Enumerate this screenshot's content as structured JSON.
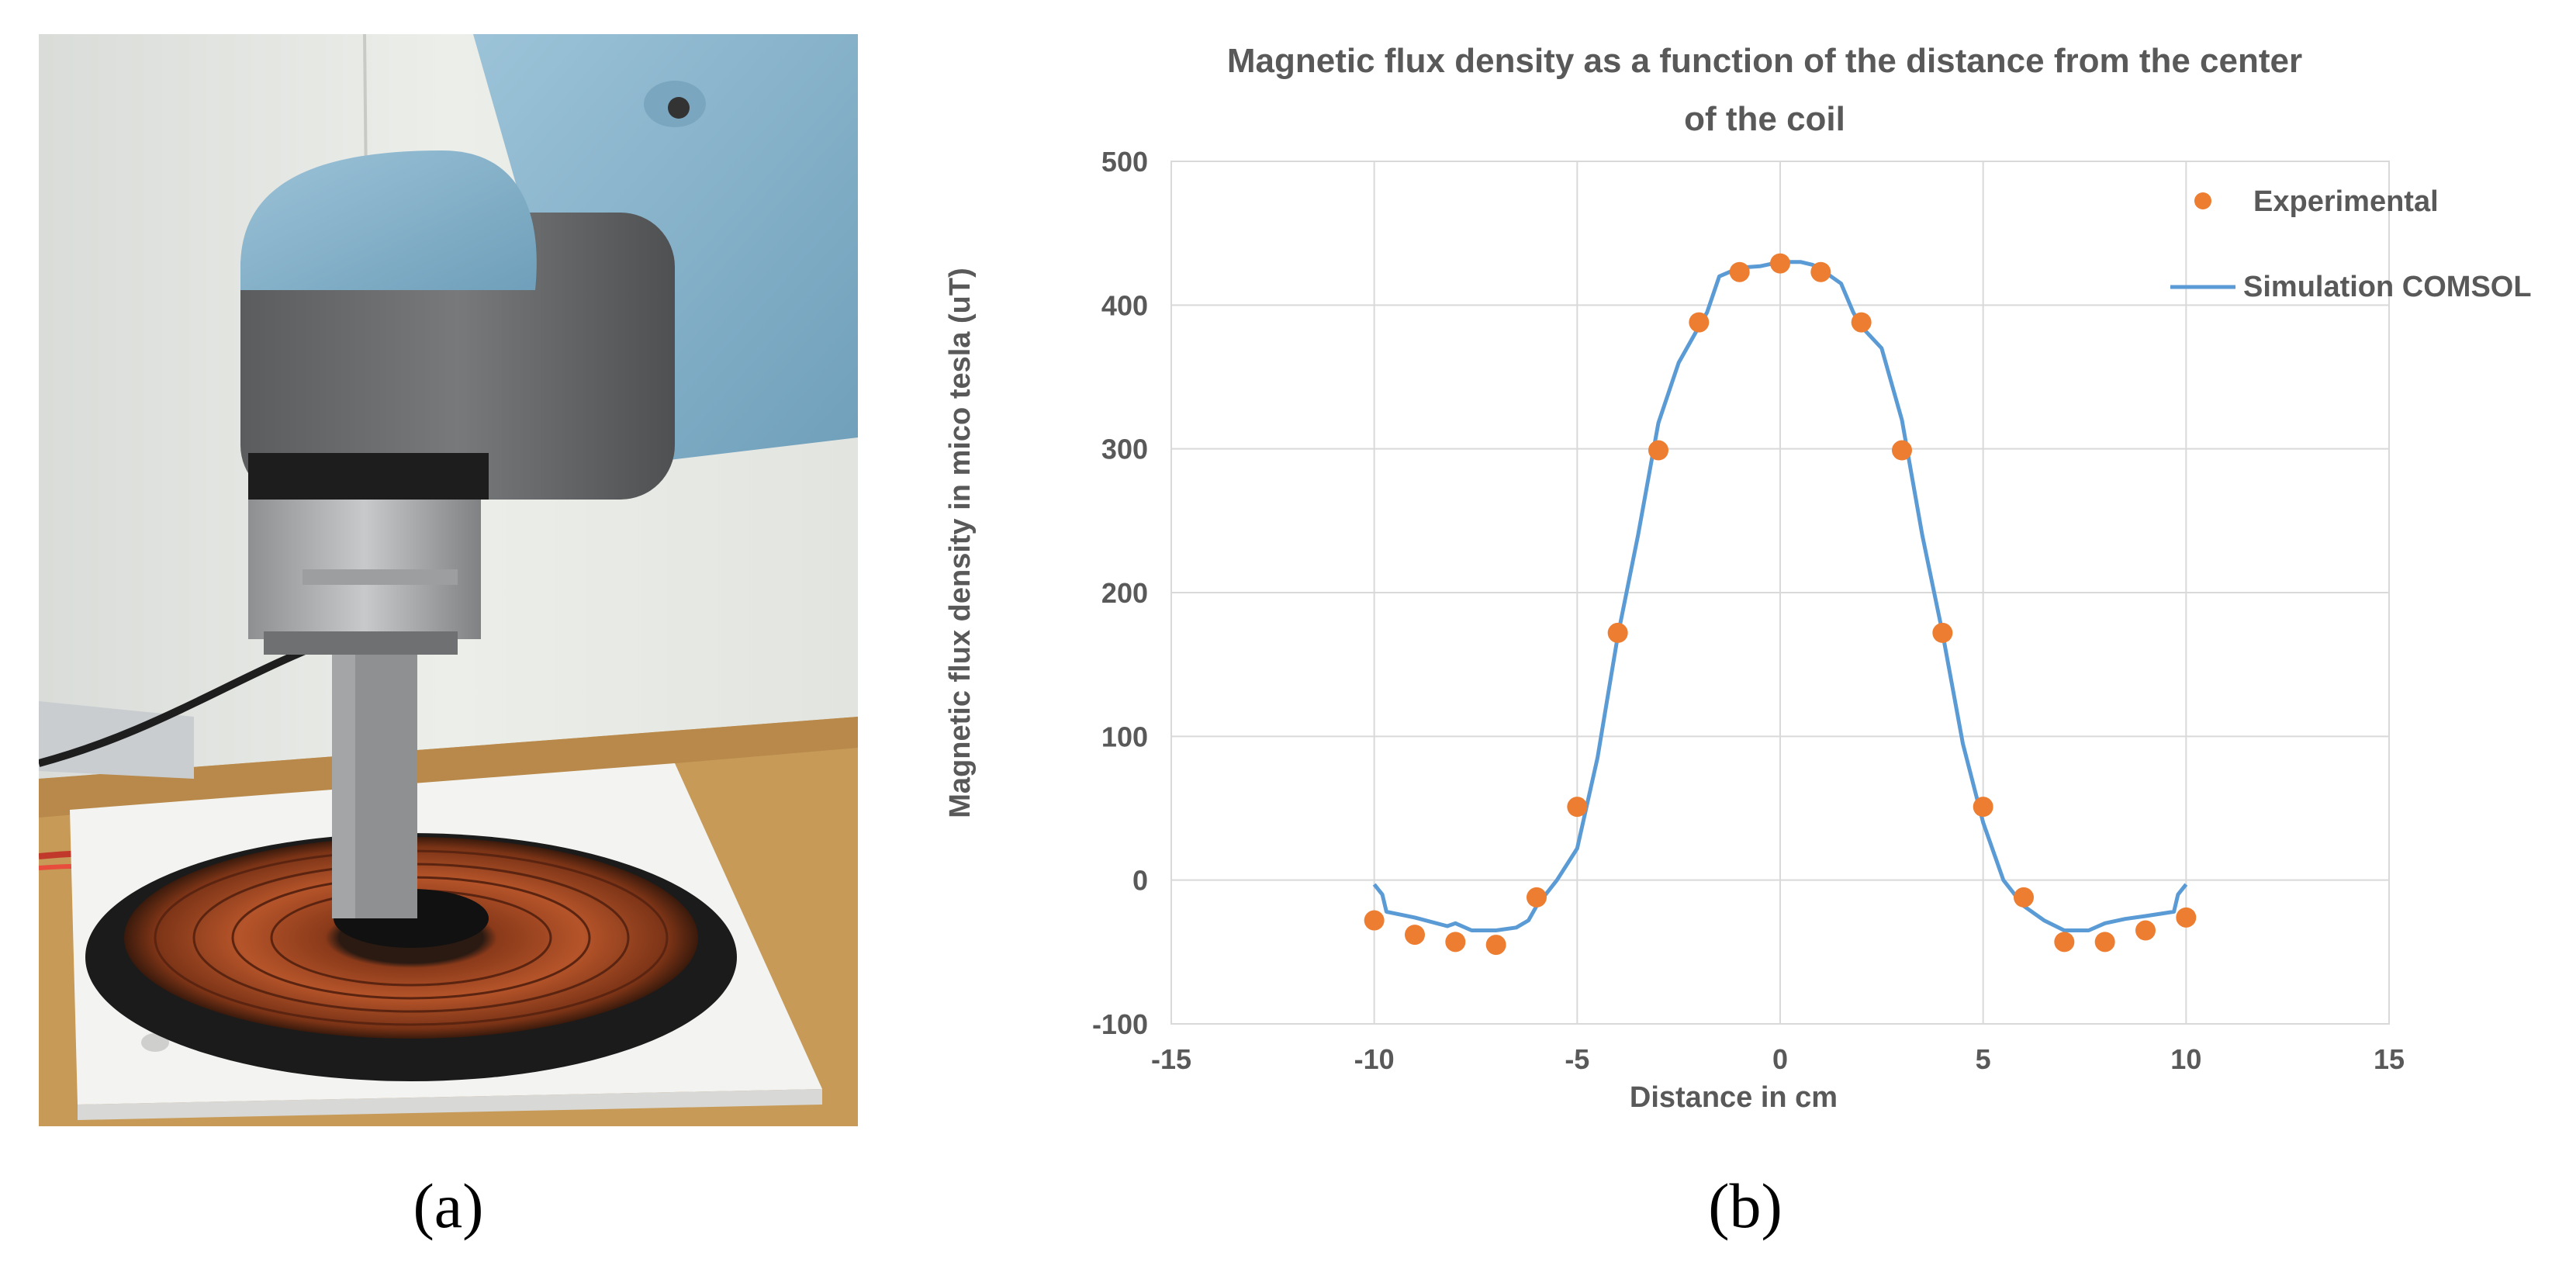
{
  "panel_labels": {
    "a": "(a)",
    "b": "(b)"
  },
  "photo": {
    "icons": [
      "robot-arm-icon",
      "hall-probe-icon",
      "coil-icon",
      "base-plate-icon",
      "cable-icon"
    ]
  },
  "colors": {
    "experimental": "#ED7D31",
    "simulation": "#5B9BD5",
    "grid": "#D9D9D9",
    "text": "#595959"
  },
  "chart_data": {
    "type": "scatter",
    "title_line1": "Magnetic flux density as a function of the distance from the center",
    "title_line2": "of the coil",
    "xlabel": "Distance in cm",
    "ylabel": "Magnetic flux density in mico tesla (uT)",
    "xlim": [
      -15,
      15
    ],
    "ylim": [
      -100,
      500
    ],
    "xticks": [
      -15,
      -10,
      -5,
      0,
      5,
      10,
      15
    ],
    "yticks": [
      -100,
      0,
      100,
      200,
      300,
      400,
      500
    ],
    "grid": true,
    "legend_position": "top-right",
    "series": [
      {
        "name": "Experimental",
        "kind": "markers",
        "x": [
          -10,
          -9,
          -8,
          -7,
          -6,
          -5,
          -4,
          -3,
          -2,
          -1,
          0,
          1,
          2,
          3,
          4,
          5,
          6,
          7,
          8,
          9,
          10
        ],
        "y": [
          -28,
          -38,
          -43,
          -45,
          -12,
          51,
          172,
          299,
          388,
          423,
          429,
          423,
          388,
          299,
          172,
          51,
          -12,
          -43,
          -43,
          -35,
          -26
        ]
      },
      {
        "name": "Simulation COMSOL",
        "kind": "line",
        "x": [
          -10,
          -9.8,
          -9.7,
          -9,
          -8.2,
          -8,
          -7.6,
          -7,
          -6.5,
          -6.2,
          -6,
          -5.5,
          -5,
          -4.5,
          -4,
          -3.5,
          -3,
          -2.5,
          -2,
          -1.8,
          -1.5,
          -1,
          -0.5,
          0,
          0.5,
          0.8,
          1,
          1.5,
          1.8,
          2,
          2.5,
          3,
          3.5,
          4,
          4.5,
          5,
          5.5,
          6,
          6.5,
          7,
          7.6,
          8,
          8.5,
          9,
          9.7,
          9.8,
          10
        ],
        "y": [
          -3,
          -10,
          -22,
          -26,
          -32,
          -30,
          -35,
          -35,
          -33,
          -28,
          -18,
          0,
          22,
          85,
          170,
          240,
          318,
          360,
          385,
          395,
          420,
          426,
          427,
          430,
          430,
          428,
          425,
          415,
          395,
          385,
          370,
          320,
          240,
          172,
          95,
          40,
          0,
          -18,
          -28,
          -35,
          -35,
          -30,
          -27,
          -25,
          -22,
          -10,
          -3
        ]
      }
    ]
  }
}
